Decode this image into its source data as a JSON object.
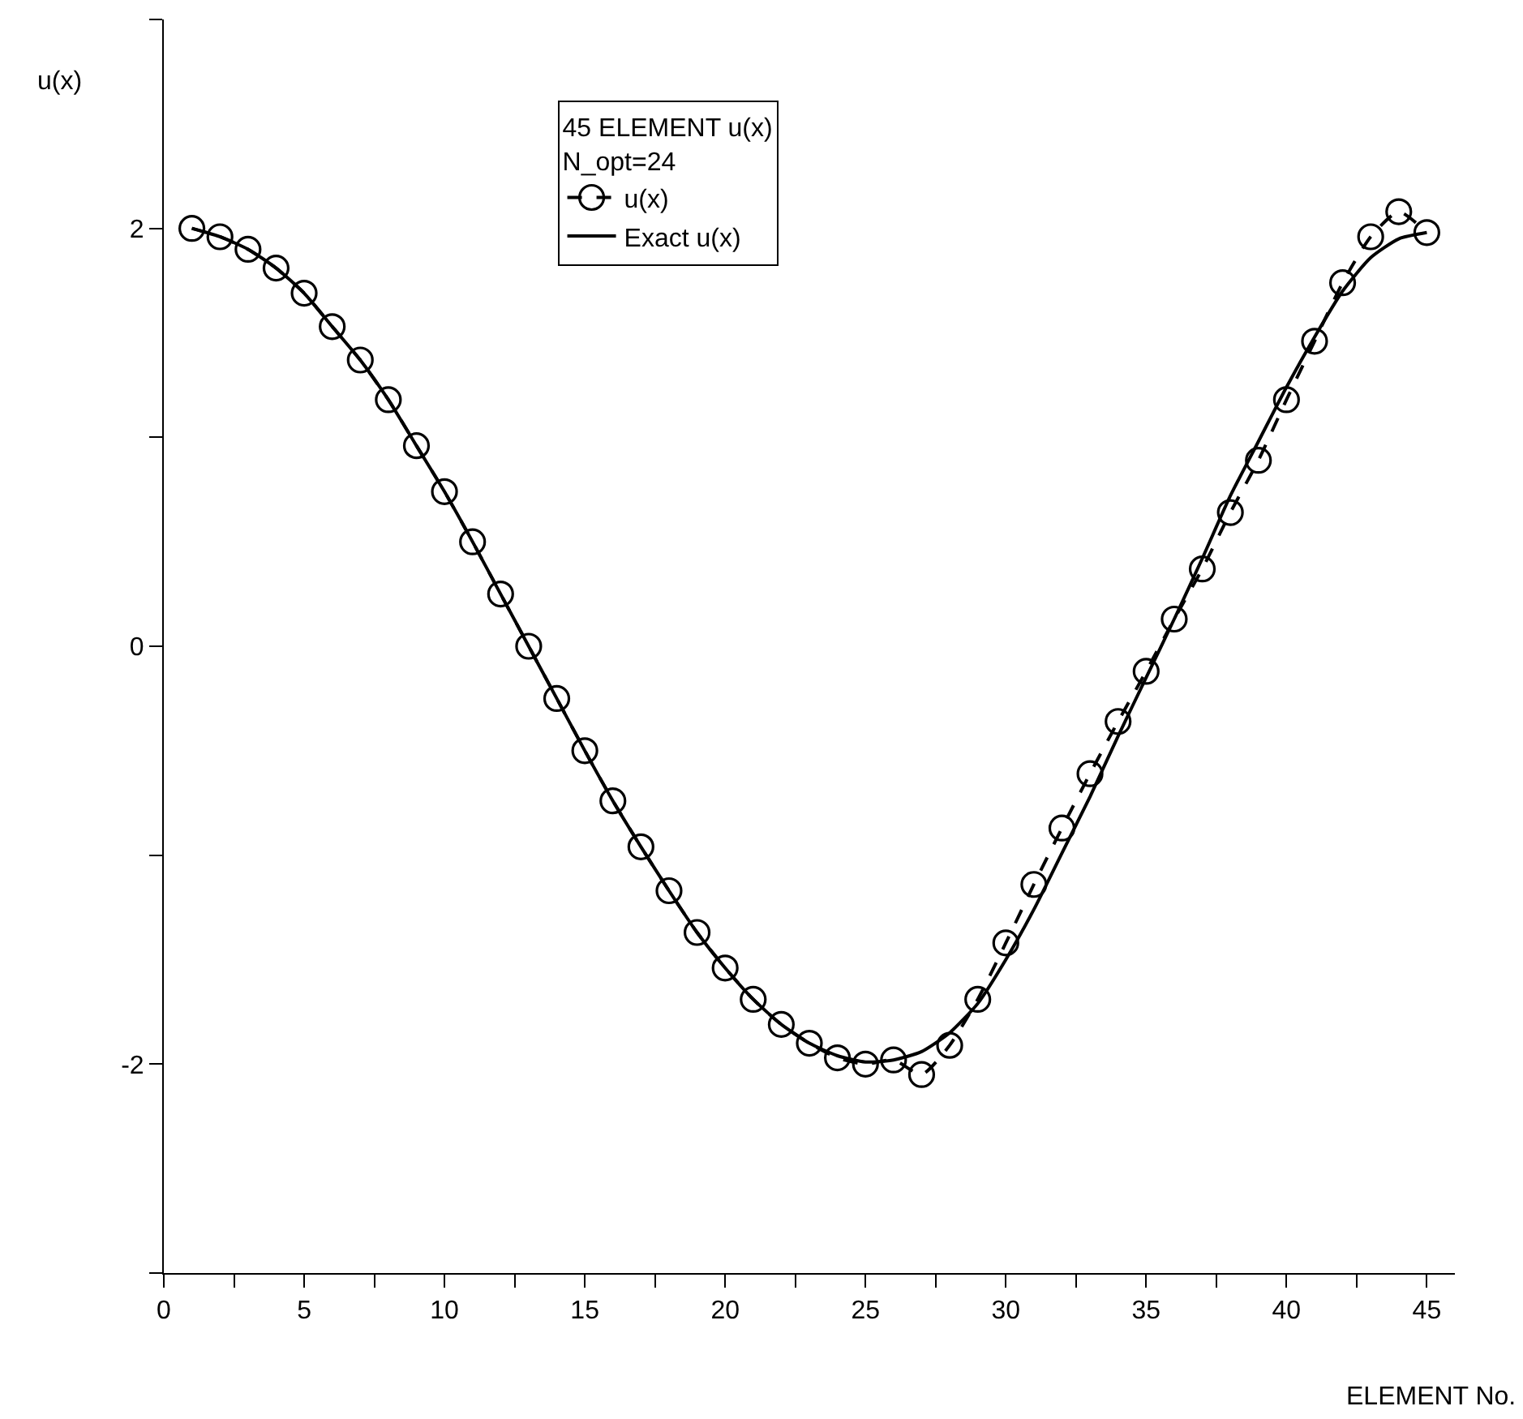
{
  "chart_data": {
    "type": "line",
    "xlabel": "ELEMENT No.",
    "ylabel": "u(x)",
    "legend_title": "45 ELEMENT u(x)\nN_opt=24",
    "x": [
      1,
      2,
      3,
      4,
      5,
      6,
      7,
      8,
      9,
      10,
      11,
      12,
      13,
      14,
      15,
      16,
      17,
      18,
      19,
      20,
      21,
      22,
      23,
      24,
      25,
      26,
      27,
      28,
      29,
      30,
      31,
      32,
      33,
      34,
      35,
      36,
      37,
      38,
      39,
      40,
      41,
      42,
      43,
      44,
      45
    ],
    "series": [
      {
        "name": "u(x)",
        "color": "#000000",
        "marker": "circle",
        "line_style": "dashed",
        "values": [
          2.0,
          1.96,
          1.9,
          1.81,
          1.69,
          1.53,
          1.37,
          1.18,
          0.96,
          0.74,
          0.5,
          0.25,
          0.0,
          -0.25,
          -0.5,
          -0.74,
          -0.96,
          -1.17,
          -1.37,
          -1.54,
          -1.69,
          -1.81,
          -1.9,
          -1.97,
          -2.0,
          -1.98,
          -2.05,
          -1.91,
          -1.69,
          -1.42,
          -1.14,
          -0.87,
          -0.61,
          -0.36,
          -0.12,
          0.13,
          0.37,
          0.64,
          0.89,
          1.18,
          1.46,
          1.74,
          1.96,
          2.08,
          1.98
        ]
      },
      {
        "name": "Exact u(x)",
        "color": "#000000",
        "marker": "none",
        "line_style": "solid",
        "values": [
          2.0,
          1.96,
          1.9,
          1.81,
          1.69,
          1.53,
          1.37,
          1.18,
          0.96,
          0.74,
          0.5,
          0.25,
          0.0,
          -0.25,
          -0.5,
          -0.74,
          -0.96,
          -1.17,
          -1.37,
          -1.54,
          -1.69,
          -1.81,
          -1.9,
          -1.96,
          -1.99,
          -1.98,
          -1.94,
          -1.85,
          -1.71,
          -1.5,
          -1.26,
          -0.99,
          -0.72,
          -0.43,
          -0.15,
          0.13,
          0.42,
          0.72,
          0.98,
          1.24,
          1.48,
          1.7,
          1.86,
          1.95,
          1.98
        ]
      }
    ],
    "xlim": [
      0,
      46
    ],
    "xticks": [
      0,
      {
        "value": 2.5,
        "label": null
      },
      5,
      {
        "value": 7.5,
        "label": null
      },
      10,
      {
        "value": 12.5,
        "label": null
      },
      15,
      {
        "value": 17.5,
        "label": null
      },
      20,
      {
        "value": 22.5,
        "label": null
      },
      25,
      {
        "value": 27.5,
        "label": null
      },
      30,
      {
        "value": 32.5,
        "label": null
      },
      35,
      {
        "value": 37.5,
        "label": null
      },
      40,
      {
        "value": 42.5,
        "label": null
      },
      45
    ],
    "ylim": [
      -3,
      3
    ],
    "yticks": [
      {
        "value": -3,
        "label": null
      },
      -2,
      {
        "value": -1,
        "label": null
      },
      0,
      {
        "value": 1,
        "label": null
      },
      2,
      {
        "value": 3,
        "label": null
      }
    ],
    "grid": false,
    "legend": "top"
  }
}
